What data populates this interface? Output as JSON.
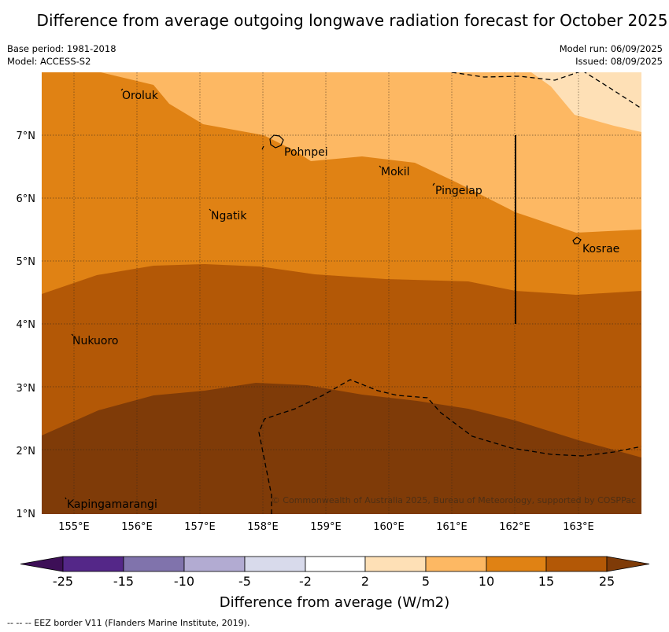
{
  "title": "Difference from average outgoing longwave radiation forecast for October 2025",
  "base_period": "Base period: 1981-2018",
  "model": "Model: ACCESS-S2",
  "model_run": "Model run: 06/09/2025",
  "issued": "Issued: 08/09/2025",
  "copyright": "© Commonwealth of Australia 2025, Bureau of Meteorology, supported by COSPPac",
  "lon_ticks": [
    "155°E",
    "156°E",
    "157°E",
    "158°E",
    "159°E",
    "160°E",
    "161°E",
    "162°E",
    "163°E"
  ],
  "lat_ticks": [
    "1°N",
    "2°N",
    "3°N",
    "4°N",
    "5°N",
    "6°N",
    "7°N"
  ],
  "places": [
    {
      "name": "Oroluk"
    },
    {
      "name": "Pohnpei"
    },
    {
      "name": "Mokil"
    },
    {
      "name": "Pingelap"
    },
    {
      "name": "Ngatik"
    },
    {
      "name": "Kosrae"
    },
    {
      "name": "Nukuoro"
    },
    {
      "name": "Kapingamarangi"
    }
  ],
  "colorbar": {
    "label": "Difference from average (W/m2)",
    "ticks": [
      "-25",
      "-15",
      "-10",
      "-5",
      "-2",
      "2",
      "5",
      "10",
      "15",
      "25"
    ],
    "colors": [
      "#3d0f57",
      "#542788",
      "#8073ac",
      "#b2abd2",
      "#d8daeb",
      "#ffffff",
      "#fee0b6",
      "#fdb863",
      "#e08214",
      "#b35806",
      "#7f3b08"
    ]
  },
  "legend_note": "-- -- -- EEZ border V11 (Flanders Marine Institute, 2019)."
}
